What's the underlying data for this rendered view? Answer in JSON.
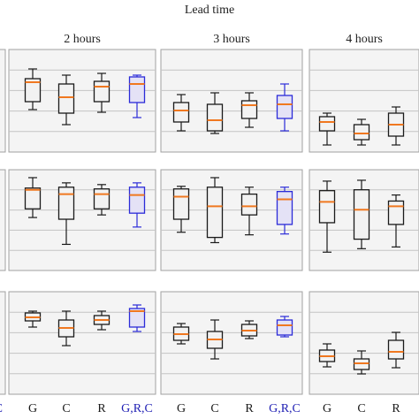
{
  "figure": {
    "title": "Lead time"
  },
  "colors": {
    "panel_fill": "#f4f4f4",
    "panel_border": "#a0a0a0",
    "grid": "#c4c4c4",
    "box_fill": "#f2f2f2",
    "box_edge": "#1a1a1a",
    "median": "#f07820",
    "highlight_edge": "#2b2bd8",
    "highlight_fill": "#e4e2f6",
    "label_default": "#1a1a1a",
    "label_highlight": "#1f1fb4"
  },
  "chart_data": {
    "type": "box",
    "column_headers": [
      "2 hours",
      "3 hours",
      "4 hours"
    ],
    "categories": [
      "G",
      "C",
      "R",
      "G,R,C"
    ],
    "highlight_category": "G,R,C",
    "ylim": [
      0,
      100
    ],
    "grid": true,
    "partial_left_column": {
      "visible_label": "G,R,C"
    },
    "panels": [
      {
        "row": 0,
        "col": 0,
        "lead_time": "2 hours",
        "boxes": [
          {
            "label": "G",
            "min": 40,
            "q1": 49,
            "median": 71,
            "q3": 75,
            "max": 86
          },
          {
            "label": "C",
            "min": 23,
            "q1": 36,
            "median": 54,
            "q3": 69,
            "max": 79
          },
          {
            "label": "R",
            "min": 37,
            "q1": 49,
            "median": 66,
            "q3": 72,
            "max": 81
          },
          {
            "label": "G,R,C",
            "min": 31,
            "q1": 48,
            "median": 69,
            "q3": 77,
            "max": 79
          }
        ]
      },
      {
        "row": 0,
        "col": 1,
        "lead_time": "3 hours",
        "boxes": [
          {
            "label": "G",
            "min": 16,
            "q1": 26,
            "median": 39,
            "q3": 48,
            "max": 57
          },
          {
            "label": "C",
            "min": 13,
            "q1": 16,
            "median": 28,
            "q3": 46,
            "max": 59
          },
          {
            "label": "R",
            "min": 20,
            "q1": 30,
            "median": 45,
            "q3": 50,
            "max": 59
          },
          {
            "label": "G,R,C",
            "min": 16,
            "q1": 30,
            "median": 46,
            "q3": 56,
            "max": 69
          }
        ]
      },
      {
        "row": 0,
        "col": 2,
        "lead_time": "4 hours",
        "boxes": [
          {
            "label": "G",
            "min": 0,
            "q1": 16,
            "median": 26,
            "q3": 32,
            "max": 36
          },
          {
            "label": "C",
            "min": 0,
            "q1": 6,
            "median": 13,
            "q3": 23,
            "max": 29
          },
          {
            "label": "R",
            "min": 0,
            "q1": 10,
            "median": 23,
            "q3": 36,
            "max": 43
          }
        ]
      },
      {
        "row": 1,
        "col": 0,
        "lead_time": "2 hours",
        "boxes": [
          {
            "label": "G",
            "min": 53,
            "q1": 63,
            "median": 85,
            "q3": 87,
            "max": 99
          },
          {
            "label": "C",
            "min": 22,
            "q1": 51,
            "median": 80,
            "q3": 88,
            "max": 93
          },
          {
            "label": "R",
            "min": 56,
            "q1": 63,
            "median": 80,
            "q3": 86,
            "max": 91
          },
          {
            "label": "G,R,C",
            "min": 42,
            "q1": 58,
            "median": 79,
            "q3": 88,
            "max": 93
          }
        ]
      },
      {
        "row": 1,
        "col": 1,
        "lead_time": "3 hours",
        "boxes": [
          {
            "label": "G",
            "min": 36,
            "q1": 51,
            "median": 77,
            "q3": 86,
            "max": 89
          },
          {
            "label": "C",
            "min": 24,
            "q1": 30,
            "median": 66,
            "q3": 88,
            "max": 99
          },
          {
            "label": "R",
            "min": 33,
            "q1": 56,
            "median": 66,
            "q3": 80,
            "max": 88
          },
          {
            "label": "G,R,C",
            "min": 34,
            "q1": 45,
            "median": 74,
            "q3": 83,
            "max": 88
          }
        ]
      },
      {
        "row": 1,
        "col": 2,
        "lead_time": "4 hours",
        "boxes": [
          {
            "label": "G",
            "min": 13,
            "q1": 47,
            "median": 71,
            "q3": 84,
            "max": 95
          },
          {
            "label": "C",
            "min": 17,
            "q1": 28,
            "median": 62,
            "q3": 85,
            "max": 96
          },
          {
            "label": "R",
            "min": 19,
            "q1": 45,
            "median": 66,
            "q3": 72,
            "max": 79
          }
        ]
      },
      {
        "row": 2,
        "col": 0,
        "lead_time": "2 hours",
        "boxes": [
          {
            "label": "G",
            "min": 68,
            "q1": 75,
            "median": 79,
            "q3": 84,
            "max": 86
          },
          {
            "label": "C",
            "min": 47,
            "q1": 57,
            "median": 67,
            "q3": 76,
            "max": 86
          },
          {
            "label": "R",
            "min": 65,
            "q1": 71,
            "median": 76,
            "q3": 81,
            "max": 86
          },
          {
            "label": "G,R,C",
            "min": 63,
            "q1": 68,
            "median": 86,
            "q3": 89,
            "max": 93
          }
        ]
      },
      {
        "row": 2,
        "col": 1,
        "lead_time": "3 hours",
        "boxes": [
          {
            "label": "G",
            "min": 49,
            "q1": 53,
            "median": 60,
            "q3": 68,
            "max": 72
          },
          {
            "label": "C",
            "min": 32,
            "q1": 44,
            "median": 54,
            "q3": 63,
            "max": 76
          },
          {
            "label": "R",
            "min": 55,
            "q1": 58,
            "median": 64,
            "q3": 71,
            "max": 75
          },
          {
            "label": "G,R,C",
            "min": 57,
            "q1": 59,
            "median": 70,
            "q3": 76,
            "max": 80
          }
        ]
      },
      {
        "row": 2,
        "col": 2,
        "lead_time": "4 hours",
        "boxes": [
          {
            "label": "G",
            "min": 23,
            "q1": 29,
            "median": 35,
            "q3": 42,
            "max": 49
          },
          {
            "label": "C",
            "min": 15,
            "q1": 20,
            "median": 27,
            "q3": 32,
            "max": 41
          },
          {
            "label": "R",
            "min": 22,
            "q1": 32,
            "median": 40,
            "q3": 53,
            "max": 62
          }
        ]
      }
    ]
  }
}
